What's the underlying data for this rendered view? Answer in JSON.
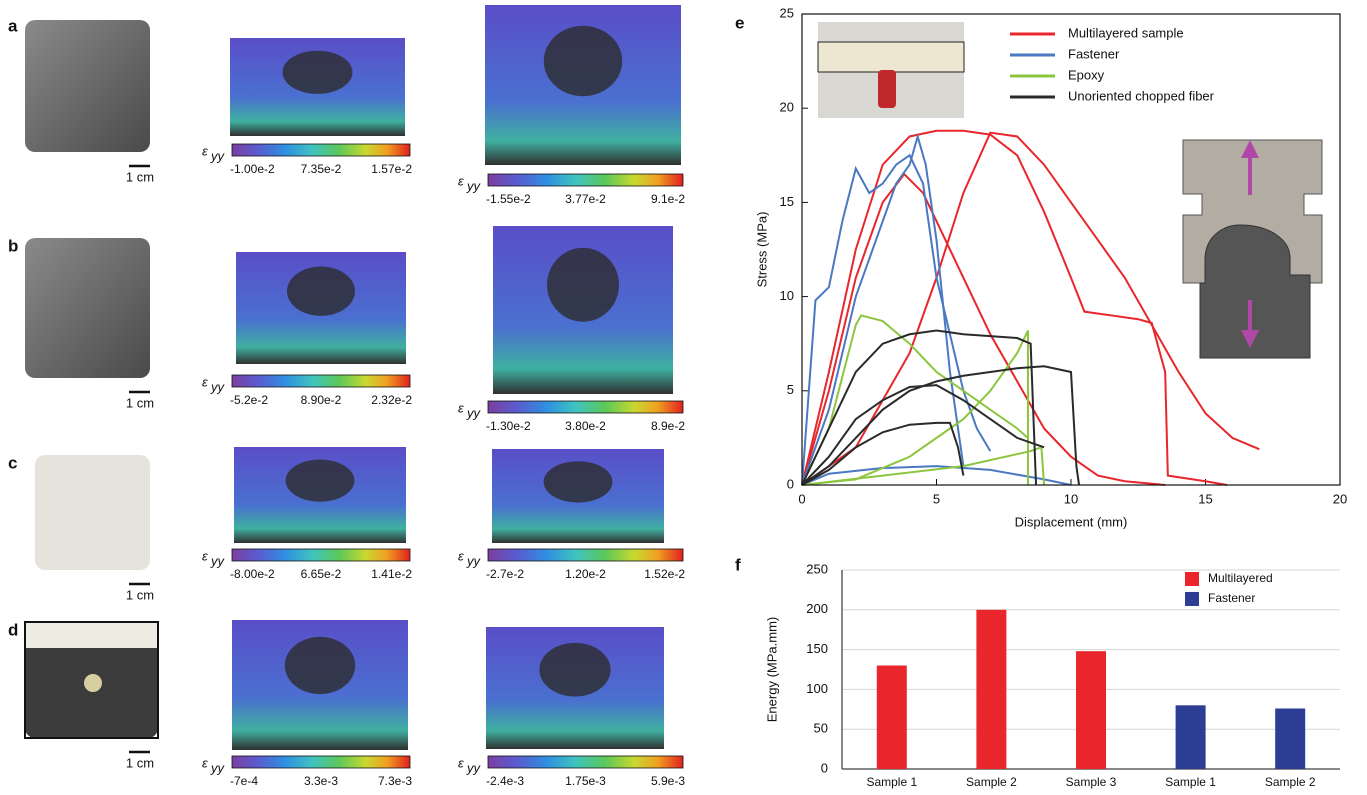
{
  "panels": [
    {
      "label": "a",
      "scale": "1 cm",
      "maps": [
        {
          "ticks": [
            "-1.00e-2",
            "7.35e-2",
            "1.57e-2"
          ]
        },
        {
          "ticks": [
            "-1.55e-2",
            "3.77e-2",
            "9.1e-2"
          ]
        }
      ]
    },
    {
      "label": "b",
      "scale": "1 cm",
      "maps": [
        {
          "ticks": [
            "-5.2e-2",
            "8.90e-2",
            "2.32e-2"
          ]
        },
        {
          "ticks": [
            "-1.30e-2",
            "3.80e-2",
            "8.9e-2"
          ]
        }
      ]
    },
    {
      "label": "c",
      "scale": "1 cm",
      "maps": [
        {
          "ticks": [
            "-8.00e-2",
            "6.65e-2",
            "1.41e-2"
          ]
        },
        {
          "ticks": [
            "-2.7e-2",
            "1.20e-2",
            "1.52e-2"
          ]
        }
      ]
    },
    {
      "label": "d",
      "scale": "1 cm",
      "maps": [
        {
          "ticks": [
            "-7e-4",
            "3.3e-3",
            "7.3e-3"
          ]
        },
        {
          "ticks": [
            "-2.4e-3",
            "1.75e-3",
            "5.9e-3"
          ]
        }
      ]
    }
  ],
  "colorbar_symbol": "ε",
  "colorbar_subscript": "yy",
  "chart_data": [
    {
      "type": "line",
      "panel_label": "e",
      "x_label": "Displacement (mm)",
      "y_label": "Stress (MPa)",
      "xlim": [
        0,
        20
      ],
      "ylim": [
        0,
        25
      ],
      "xticks": [
        0,
        5,
        10,
        15,
        20
      ],
      "yticks": [
        0,
        5,
        10,
        15,
        20,
        25
      ],
      "series": [
        {
          "name": "Multilayered sample",
          "color": "#e8262b",
          "curves": [
            {
              "x": [
                0,
                1,
                2,
                3,
                4,
                5,
                6,
                7,
                8,
                9,
                10,
                10.5,
                11.5,
                12.5,
                13,
                13.5,
                13.6,
                15,
                15.8
              ],
              "values": [
                0,
                6,
                12.5,
                17,
                18.5,
                18.8,
                18.8,
                18.6,
                17.5,
                14.5,
                11,
                9.2,
                9,
                8.8,
                8.6,
                6,
                0.5,
                0.2,
                0
              ]
            },
            {
              "x": [
                0,
                2,
                4,
                5,
                6,
                7,
                8,
                9,
                10,
                11,
                12,
                13,
                14,
                15,
                16,
                17
              ],
              "values": [
                0,
                2,
                7,
                11,
                15.5,
                18.7,
                18.5,
                17,
                15,
                13,
                11,
                8.5,
                6,
                3.8,
                2.5,
                1.9
              ]
            },
            {
              "x": [
                0,
                1,
                2,
                3,
                3.8,
                4.5,
                5,
                6,
                7,
                8,
                9,
                10,
                10.5,
                11,
                12,
                13.5
              ],
              "values": [
                0,
                5,
                11,
                15,
                16.5,
                15.5,
                14,
                11,
                8,
                5.5,
                3,
                1.5,
                1,
                0.5,
                0.2,
                0
              ]
            }
          ]
        },
        {
          "name": "Fastener",
          "color": "#4a78c2",
          "curves": [
            {
              "x": [
                0,
                0.5,
                1,
                1.5,
                2,
                2.5,
                3,
                3.5,
                4,
                4.5,
                5,
                5.5,
                6,
                6.5,
                7
              ],
              "values": [
                0,
                9.8,
                10.5,
                14,
                16.8,
                15.5,
                16,
                17,
                17.5,
                16,
                11,
                8,
                5,
                3,
                1.8
              ]
            },
            {
              "x": [
                0,
                1,
                2,
                3,
                3.5,
                4,
                4.3,
                4.6,
                5,
                5.5,
                6
              ],
              "values": [
                0,
                4,
                10,
                14,
                16,
                17,
                18.5,
                17,
                13,
                6,
                1
              ]
            },
            {
              "x": [
                0,
                1,
                3,
                5,
                7,
                9,
                10
              ],
              "values": [
                0,
                0.6,
                0.9,
                1,
                0.8,
                0.3,
                0
              ]
            }
          ]
        },
        {
          "name": "Epoxy",
          "color": "#8cc63f",
          "curves": [
            {
              "x": [
                0,
                1,
                2,
                2.2,
                3,
                4,
                5,
                6,
                7,
                8,
                8.4
              ],
              "values": [
                0,
                3,
                8.5,
                9,
                8.7,
                7.5,
                6,
                5,
                4,
                3,
                2.5
              ]
            },
            {
              "x": [
                0,
                2,
                4,
                6,
                7,
                8,
                8.4,
                8.4
              ],
              "values": [
                0,
                0.3,
                1.5,
                3.5,
                5,
                7,
                8.2,
                0
              ]
            },
            {
              "x": [
                0,
                3,
                6,
                8.5,
                8.9,
                9
              ],
              "values": [
                0,
                0.5,
                1,
                1.8,
                2,
                0
              ]
            }
          ]
        },
        {
          "name": "Unoriented chopped fiber",
          "color": "#2a2a2a",
          "curves": [
            {
              "x": [
                0,
                1,
                2,
                3,
                4,
                5,
                6,
                7,
                8,
                8.5,
                8.7
              ],
              "values": [
                0,
                3,
                6,
                7.5,
                8,
                8.2,
                8,
                7.9,
                7.8,
                7.5,
                0
              ]
            },
            {
              "x": [
                0,
                1,
                2,
                3,
                4,
                5,
                6,
                7,
                8,
                9,
                10,
                10.2,
                10.3
              ],
              "values": [
                0,
                1,
                2.5,
                4,
                5,
                5.5,
                5.8,
                6,
                6.2,
                6.3,
                6,
                1,
                0
              ]
            },
            {
              "x": [
                0,
                1,
                2,
                3,
                4,
                5,
                6,
                7,
                8,
                9
              ],
              "values": [
                0,
                1.5,
                3.5,
                4.5,
                5.2,
                5.3,
                4.5,
                3.5,
                2.5,
                2
              ]
            },
            {
              "x": [
                0,
                1,
                2,
                3,
                4,
                5,
                5.5,
                5.8,
                6
              ],
              "values": [
                0,
                0.8,
                2,
                2.8,
                3.2,
                3.3,
                3.3,
                2,
                0.5
              ]
            }
          ]
        }
      ]
    },
    {
      "type": "bar",
      "panel_label": "f",
      "y_label": "Energy (MPa.mm)",
      "categories": [
        "Sample 1",
        "Sample 2",
        "Sample 3",
        "Sample 1",
        "Sample 2"
      ],
      "ylim": [
        0,
        250
      ],
      "yticks": [
        0,
        50,
        100,
        150,
        200,
        250
      ],
      "grid": true,
      "series": [
        {
          "name": "Multilayered",
          "color": "#e8262b",
          "values": [
            130,
            200,
            148,
            null,
            null
          ]
        },
        {
          "name": "Fastener",
          "color": "#2e3d94",
          "values": [
            null,
            null,
            null,
            80,
            76
          ]
        }
      ]
    }
  ]
}
